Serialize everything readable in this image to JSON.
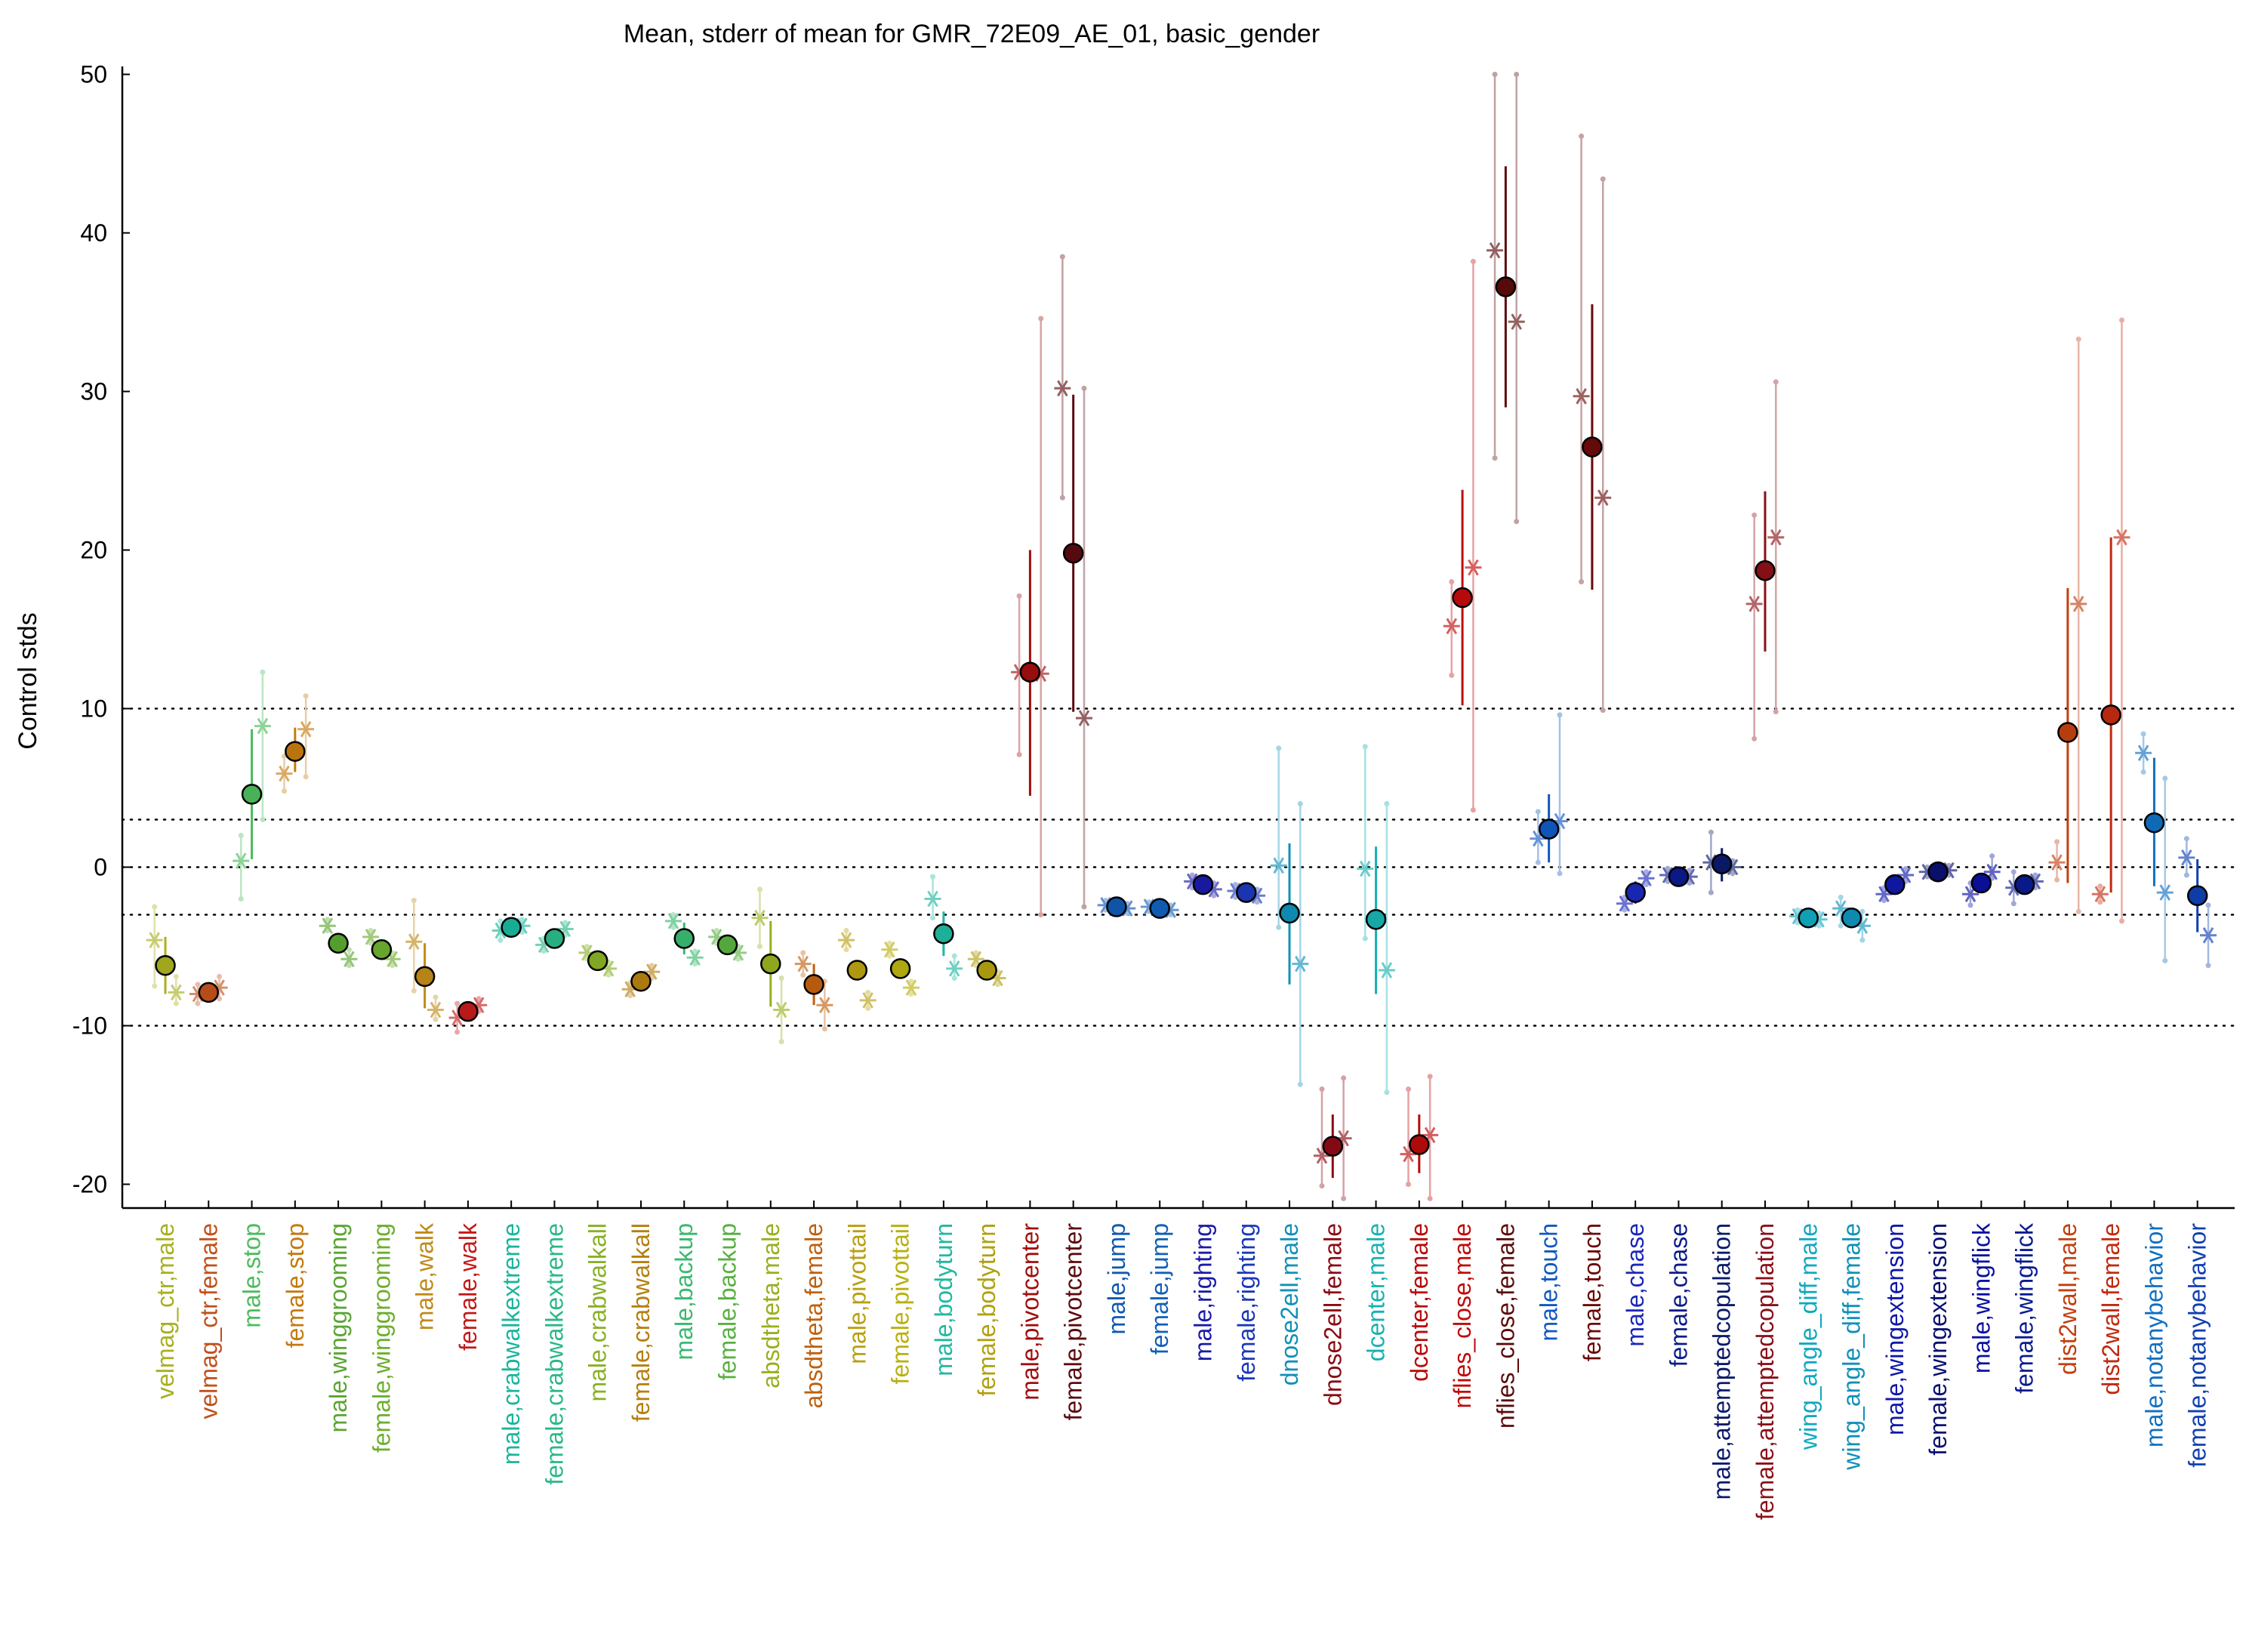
{
  "chart_data": {
    "type": "scatter",
    "title": "Mean, stderr of mean for GMR_72E09_AE_01, basic_gender",
    "xlabel": "",
    "ylabel": "Control stds",
    "ylim": [
      -21.5,
      50.5
    ],
    "yticks": [
      -20,
      -10,
      0,
      10,
      20,
      30,
      40,
      50
    ],
    "ytick_labels": [
      "-20",
      "-10",
      "0",
      "10",
      "20",
      "30",
      "40",
      "50"
    ],
    "reference_lines": [
      -10,
      -3,
      0,
      3,
      10
    ],
    "grid": false,
    "legend": "none",
    "categories": [
      "velmag_ctr,male",
      "velmag_ctr,female",
      "male,stop",
      "female,stop",
      "male,winggrooming",
      "female,winggrooming",
      "male,walk",
      "female,walk",
      "male,crabwalkextreme",
      "female,crabwalkextreme",
      "male,crabwalkall",
      "female,crabwalkall",
      "male,backup",
      "female,backup",
      "absdtheta,male",
      "absdtheta,female",
      "male,pivottail",
      "female,pivottail",
      "male,bodyturn",
      "female,bodyturn",
      "male,pivotcenter",
      "female,pivotcenter",
      "male,jump",
      "female,jump",
      "male,righting",
      "female,righting",
      "dnose2ell,male",
      "dnose2ell,female",
      "dcenter,male",
      "dcenter,female",
      "nflies_close,male",
      "nflies_close,female",
      "male,touch",
      "female,touch",
      "male,chase",
      "female,chase",
      "male,attemptedcopulation",
      "female,attemptedcopulation",
      "wing_angle_diff,male",
      "wing_angle_diff,female",
      "male,wingextension",
      "female,wingextension",
      "male,wingflick",
      "female,wingflick",
      "dist2wall,male",
      "dist2wall,female",
      "male,notanybehavior",
      "female,notanybehavior"
    ],
    "colors": [
      "#a8b01e",
      "#c0501a",
      "#4dbb5e",
      "#c47a10",
      "#5aa532",
      "#6cae2e",
      "#c08a18",
      "#c21a1a",
      "#1ab59c",
      "#2ab888",
      "#88b024",
      "#b57f10",
      "#3ab870",
      "#58b040",
      "#96b01e",
      "#c0600e",
      "#b8a010",
      "#b8b010",
      "#20b8a0",
      "#b0a010",
      "#a00e0e",
      "#5a0a10",
      "#1058b0",
      "#1060b8",
      "#1a1aa8",
      "#1a38b8",
      "#1090b8",
      "#8a0a14",
      "#18b0b0",
      "#b80a0a",
      "#c00a0a",
      "#5a0a0a",
      "#1058c0",
      "#6a0a0a",
      "#1a28b8",
      "#0a1a8a",
      "#0a1a6a",
      "#8a1018",
      "#10a8c0",
      "#1090b8",
      "#1018a8",
      "#0a1070",
      "#0a10a0",
      "#0a1a90",
      "#c04010",
      "#c02a10",
      "#1070c0",
      "#1040b0"
    ],
    "means": [
      -6.2,
      -7.9,
      4.6,
      7.3,
      -4.8,
      -5.2,
      -6.9,
      -9.1,
      -3.8,
      -4.5,
      -5.9,
      -7.2,
      -4.5,
      -4.9,
      -6.1,
      -7.4,
      -6.5,
      -6.4,
      -4.2,
      -6.5,
      12.3,
      19.8,
      -2.5,
      -2.6,
      -1.1,
      -1.6,
      -2.9,
      -17.6,
      -3.3,
      -17.5,
      17.0,
      36.6,
      2.4,
      26.5,
      -1.6,
      -0.6,
      0.2,
      18.7,
      -3.2,
      -3.2,
      -1.1,
      -0.3,
      -1.0,
      -1.1,
      8.5,
      9.6,
      2.8,
      -1.8
    ],
    "sem_ranges": [
      [
        -8.0,
        -4.4
      ],
      [
        -8.3,
        -7.5
      ],
      [
        0.5,
        8.7
      ],
      [
        6.0,
        8.8
      ],
      [
        -5.1,
        -4.5
      ],
      [
        -5.6,
        -4.8
      ],
      [
        -8.9,
        -4.8
      ],
      [
        -9.6,
        -8.6
      ],
      [
        -4.1,
        -3.5
      ],
      [
        -4.9,
        -4.1
      ],
      [
        -6.3,
        -5.5
      ],
      [
        -7.6,
        -6.8
      ],
      [
        -5.5,
        -3.5
      ],
      [
        -5.4,
        -4.4
      ],
      [
        -8.8,
        -3.4
      ],
      [
        -8.7,
        -6.1
      ],
      [
        -7.1,
        -5.9
      ],
      [
        -7.0,
        -5.8
      ],
      [
        -5.6,
        -2.8
      ],
      [
        -6.9,
        -6.1
      ],
      [
        4.5,
        20.0
      ],
      [
        9.8,
        29.8
      ],
      [
        -2.7,
        -2.3
      ],
      [
        -2.8,
        -2.4
      ],
      [
        -1.5,
        -0.7
      ],
      [
        -2.0,
        -1.2
      ],
      [
        -7.4,
        1.5
      ],
      [
        -19.6,
        -15.6
      ],
      [
        -8.0,
        1.3
      ],
      [
        -19.3,
        -15.6
      ],
      [
        10.2,
        23.8
      ],
      [
        29.0,
        44.2
      ],
      [
        0.3,
        4.6
      ],
      [
        17.5,
        35.5
      ],
      [
        -2.3,
        -0.9
      ],
      [
        -0.9,
        -0.3
      ],
      [
        -0.9,
        1.2
      ],
      [
        13.6,
        23.7
      ],
      [
        -3.4,
        -3.0
      ],
      [
        -3.5,
        -2.9
      ],
      [
        -1.6,
        -0.6
      ],
      [
        -0.5,
        -0.1
      ],
      [
        -1.6,
        -0.4
      ],
      [
        -1.6,
        -0.6
      ],
      [
        -1.0,
        17.6
      ],
      [
        -1.6,
        20.8
      ],
      [
        -1.2,
        6.9
      ],
      [
        -4.1,
        0.5
      ]
    ],
    "individual_points": [
      [
        {
          "dx": -0.25,
          "y": -4.6,
          "lo": -7.5,
          "hi": -2.5
        },
        {
          "dx": 0.25,
          "y": -7.9,
          "lo": -8.6,
          "hi": -6.9
        }
      ],
      [
        {
          "dx": -0.25,
          "y": -8.0,
          "lo": -8.6,
          "hi": -7.4
        },
        {
          "dx": 0.25,
          "y": -7.6,
          "lo": -8.3,
          "hi": -6.9
        }
      ],
      [
        {
          "dx": -0.25,
          "y": 0.4,
          "lo": -2.0,
          "hi": 2.0
        },
        {
          "dx": 0.25,
          "y": 8.9,
          "lo": 3.0,
          "hi": 12.3
        }
      ],
      [
        {
          "dx": -0.25,
          "y": 5.9,
          "lo": 4.8,
          "hi": 7.0
        },
        {
          "dx": 0.25,
          "y": 8.7,
          "lo": 5.7,
          "hi": 10.8
        }
      ],
      [
        {
          "dx": -0.25,
          "y": -3.7,
          "lo": -4.0,
          "hi": -3.3
        },
        {
          "dx": 0.25,
          "y": -5.8,
          "lo": -6.2,
          "hi": -5.2
        }
      ],
      [
        {
          "dx": -0.25,
          "y": -4.4,
          "lo": -4.8,
          "hi": -4.0
        },
        {
          "dx": 0.25,
          "y": -5.8,
          "lo": -6.2,
          "hi": -5.4
        }
      ],
      [
        {
          "dx": -0.25,
          "y": -4.7,
          "lo": -7.8,
          "hi": -2.1
        },
        {
          "dx": 0.25,
          "y": -9.0,
          "lo": -9.6,
          "hi": -8.2
        }
      ],
      [
        {
          "dx": -0.25,
          "y": -9.5,
          "lo": -10.4,
          "hi": -8.6
        },
        {
          "dx": 0.25,
          "y": -8.7,
          "lo": -9.1,
          "hi": -8.3
        }
      ],
      [
        {
          "dx": -0.25,
          "y": -4.0,
          "lo": -4.6,
          "hi": -3.4
        },
        {
          "dx": 0.25,
          "y": -3.7,
          "lo": -4.1,
          "hi": -3.3
        }
      ],
      [
        {
          "dx": -0.25,
          "y": -4.9,
          "lo": -5.3,
          "hi": -4.5
        },
        {
          "dx": 0.25,
          "y": -3.9,
          "lo": -4.3,
          "hi": -3.5
        }
      ],
      [
        {
          "dx": -0.25,
          "y": -5.4,
          "lo": -5.8,
          "hi": -5.0
        },
        {
          "dx": 0.25,
          "y": -6.4,
          "lo": -6.8,
          "hi": -6.0
        }
      ],
      [
        {
          "dx": -0.25,
          "y": -7.7,
          "lo": -8.1,
          "hi": -7.3
        },
        {
          "dx": 0.25,
          "y": -6.6,
          "lo": -7.0,
          "hi": -6.2
        }
      ],
      [
        {
          "dx": -0.25,
          "y": -3.4,
          "lo": -3.8,
          "hi": -3.0
        },
        {
          "dx": 0.25,
          "y": -5.7,
          "lo": -6.1,
          "hi": -5.3
        }
      ],
      [
        {
          "dx": -0.25,
          "y": -4.4,
          "lo": -4.8,
          "hi": -4.0
        },
        {
          "dx": 0.25,
          "y": -5.4,
          "lo": -5.8,
          "hi": -5.0
        }
      ],
      [
        {
          "dx": -0.25,
          "y": -3.2,
          "lo": -5.0,
          "hi": -1.4
        },
        {
          "dx": 0.25,
          "y": -9.0,
          "lo": -11.0,
          "hi": -7.0
        }
      ],
      [
        {
          "dx": -0.25,
          "y": -6.1,
          "lo": -6.8,
          "hi": -5.4
        },
        {
          "dx": 0.25,
          "y": -8.7,
          "lo": -10.2,
          "hi": -7.2
        }
      ],
      [
        {
          "dx": -0.25,
          "y": -4.6,
          "lo": -5.2,
          "hi": -4.0
        },
        {
          "dx": 0.25,
          "y": -8.4,
          "lo": -8.9,
          "hi": -7.9
        }
      ],
      [
        {
          "dx": -0.25,
          "y": -5.2,
          "lo": -5.6,
          "hi": -4.8
        },
        {
          "dx": 0.25,
          "y": -7.6,
          "lo": -8.0,
          "hi": -7.2
        }
      ],
      [
        {
          "dx": -0.25,
          "y": -2.0,
          "lo": -3.2,
          "hi": -0.6
        },
        {
          "dx": 0.25,
          "y": -6.4,
          "lo": -7.0,
          "hi": -5.6
        }
      ],
      [
        {
          "dx": -0.25,
          "y": -5.8,
          "lo": -6.2,
          "hi": -5.4
        },
        {
          "dx": 0.25,
          "y": -7.0,
          "lo": -7.4,
          "hi": -6.6
        }
      ],
      [
        {
          "dx": -0.25,
          "y": 12.3,
          "lo": 7.1,
          "hi": 17.1
        },
        {
          "dx": 0.25,
          "y": 12.2,
          "lo": -3.0,
          "hi": 34.6
        }
      ],
      [
        {
          "dx": -0.25,
          "y": 30.2,
          "lo": 23.3,
          "hi": 38.5
        },
        {
          "dx": 0.25,
          "y": 9.4,
          "lo": -2.5,
          "hi": 30.2
        }
      ],
      [
        {
          "dx": -0.25,
          "y": -2.4,
          "lo": -2.7,
          "hi": -2.1
        },
        {
          "dx": 0.25,
          "y": -2.6,
          "lo": -2.9,
          "hi": -2.3
        }
      ],
      [
        {
          "dx": -0.25,
          "y": -2.5,
          "lo": -2.8,
          "hi": -2.2
        },
        {
          "dx": 0.25,
          "y": -2.7,
          "lo": -3.0,
          "hi": -2.4
        }
      ],
      [
        {
          "dx": -0.25,
          "y": -0.9,
          "lo": -1.3,
          "hi": -0.5
        },
        {
          "dx": 0.25,
          "y": -1.4,
          "lo": -1.8,
          "hi": -1.0
        }
      ],
      [
        {
          "dx": -0.25,
          "y": -1.5,
          "lo": -1.9,
          "hi": -1.1
        },
        {
          "dx": 0.25,
          "y": -1.8,
          "lo": -2.2,
          "hi": -1.4
        }
      ],
      [
        {
          "dx": -0.25,
          "y": 0.1,
          "lo": -3.8,
          "hi": 7.5
        },
        {
          "dx": 0.25,
          "y": -6.1,
          "lo": -13.7,
          "hi": 4.0
        }
      ],
      [
        {
          "dx": -0.25,
          "y": -18.2,
          "lo": -20.1,
          "hi": -14.0
        },
        {
          "dx": 0.25,
          "y": -17.1,
          "lo": -20.9,
          "hi": -13.3
        }
      ],
      [
        {
          "dx": -0.25,
          "y": -0.1,
          "lo": -4.5,
          "hi": 7.6
        },
        {
          "dx": 0.25,
          "y": -6.5,
          "lo": -14.2,
          "hi": 4.0
        }
      ],
      [
        {
          "dx": -0.25,
          "y": -18.1,
          "lo": -20.0,
          "hi": -14.0
        },
        {
          "dx": 0.25,
          "y": -16.9,
          "lo": -20.9,
          "hi": -13.2
        }
      ],
      [
        {
          "dx": -0.25,
          "y": 15.2,
          "lo": 12.1,
          "hi": 18.0
        },
        {
          "dx": 0.25,
          "y": 18.9,
          "lo": 3.6,
          "hi": 38.2
        }
      ],
      [
        {
          "dx": -0.25,
          "y": 38.9,
          "lo": 25.8,
          "hi": 50.0
        },
        {
          "dx": 0.25,
          "y": 34.4,
          "lo": 21.8,
          "hi": 50.0
        }
      ],
      [
        {
          "dx": -0.25,
          "y": 1.8,
          "lo": 0.3,
          "hi": 3.5
        },
        {
          "dx": 0.25,
          "y": 2.9,
          "lo": -0.4,
          "hi": 9.6
        }
      ],
      [
        {
          "dx": -0.25,
          "y": 29.7,
          "lo": 18.0,
          "hi": 46.1
        },
        {
          "dx": 0.25,
          "y": 23.3,
          "lo": 9.9,
          "hi": 43.4
        }
      ],
      [
        {
          "dx": -0.25,
          "y": -2.3,
          "lo": -2.7,
          "hi": -1.9
        },
        {
          "dx": 0.25,
          "y": -0.7,
          "lo": -1.1,
          "hi": -0.3
        }
      ],
      [
        {
          "dx": -0.25,
          "y": -0.5,
          "lo": -0.9,
          "hi": -0.1
        },
        {
          "dx": 0.25,
          "y": -0.6,
          "lo": -1.0,
          "hi": -0.2
        }
      ],
      [
        {
          "dx": -0.25,
          "y": 0.3,
          "lo": -1.6,
          "hi": 2.2
        },
        {
          "dx": 0.25,
          "y": 0.0,
          "lo": -0.4,
          "hi": 0.4
        }
      ],
      [
        {
          "dx": -0.25,
          "y": 16.6,
          "lo": 8.1,
          "hi": 22.2
        },
        {
          "dx": 0.25,
          "y": 20.8,
          "lo": 9.8,
          "hi": 30.6
        }
      ],
      [
        {
          "dx": -0.25,
          "y": -3.1,
          "lo": -3.5,
          "hi": -2.7
        },
        {
          "dx": 0.25,
          "y": -3.3,
          "lo": -3.7,
          "hi": -2.9
        }
      ],
      [
        {
          "dx": -0.25,
          "y": -2.6,
          "lo": -3.7,
          "hi": -1.9
        },
        {
          "dx": 0.25,
          "y": -3.7,
          "lo": -4.6,
          "hi": -2.8
        }
      ],
      [
        {
          "dx": -0.25,
          "y": -1.7,
          "lo": -2.1,
          "hi": -1.3
        },
        {
          "dx": 0.25,
          "y": -0.5,
          "lo": -0.9,
          "hi": -0.1
        }
      ],
      [
        {
          "dx": -0.25,
          "y": -0.3,
          "lo": -0.6,
          "hi": 0.0
        },
        {
          "dx": 0.25,
          "y": -0.2,
          "lo": -0.5,
          "hi": 0.1
        }
      ],
      [
        {
          "dx": -0.25,
          "y": -1.7,
          "lo": -2.4,
          "hi": -1.0
        },
        {
          "dx": 0.25,
          "y": -0.3,
          "lo": -0.7,
          "hi": 0.7
        }
      ],
      [
        {
          "dx": -0.25,
          "y": -1.3,
          "lo": -2.3,
          "hi": -0.3
        },
        {
          "dx": 0.25,
          "y": -0.9,
          "lo": -1.3,
          "hi": -0.5
        }
      ],
      [
        {
          "dx": -0.25,
          "y": 0.3,
          "lo": -0.8,
          "hi": 1.6
        },
        {
          "dx": 0.25,
          "y": 16.6,
          "lo": -2.8,
          "hi": 33.3
        }
      ],
      [
        {
          "dx": -0.25,
          "y": -1.7,
          "lo": -2.2,
          "hi": -1.2
        },
        {
          "dx": 0.25,
          "y": 20.8,
          "lo": -3.4,
          "hi": 34.5
        }
      ],
      [
        {
          "dx": -0.25,
          "y": 7.2,
          "lo": 6.0,
          "hi": 8.4
        },
        {
          "dx": 0.25,
          "y": -1.6,
          "lo": -5.9,
          "hi": 5.6
        }
      ],
      [
        {
          "dx": -0.25,
          "y": 0.6,
          "lo": -0.5,
          "hi": 1.8
        },
        {
          "dx": 0.25,
          "y": -4.3,
          "lo": -6.2,
          "hi": -2.4
        }
      ]
    ]
  }
}
